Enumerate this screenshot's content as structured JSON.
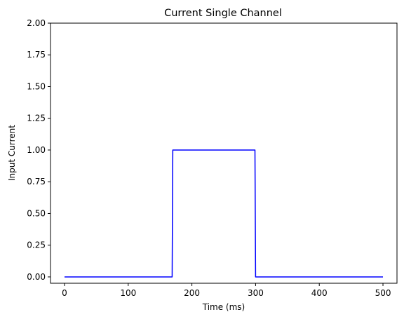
{
  "chart_data": {
    "type": "line",
    "title": "Current Single Channel",
    "xlabel": "Time (ms)",
    "ylabel": "Input Current",
    "xlim": [
      -22,
      522
    ],
    "ylim": [
      -0.05,
      2.0
    ],
    "xticks": [
      0,
      100,
      200,
      300,
      400,
      500
    ],
    "xtick_labels": [
      "0",
      "100",
      "200",
      "300",
      "400",
      "500"
    ],
    "yticks": [
      0.0,
      0.25,
      0.5,
      0.75,
      1.0,
      1.25,
      1.5,
      1.75,
      2.0
    ],
    "ytick_labels": [
      "0.00",
      "0.25",
      "0.50",
      "0.75",
      "1.00",
      "1.25",
      "1.50",
      "1.75",
      "2.00"
    ],
    "grid": false,
    "series": [
      {
        "color": "#0000ff",
        "x": [
          0,
          169,
          170,
          299,
          300,
          500
        ],
        "y": [
          0,
          0,
          1,
          1,
          0,
          0
        ]
      }
    ]
  }
}
